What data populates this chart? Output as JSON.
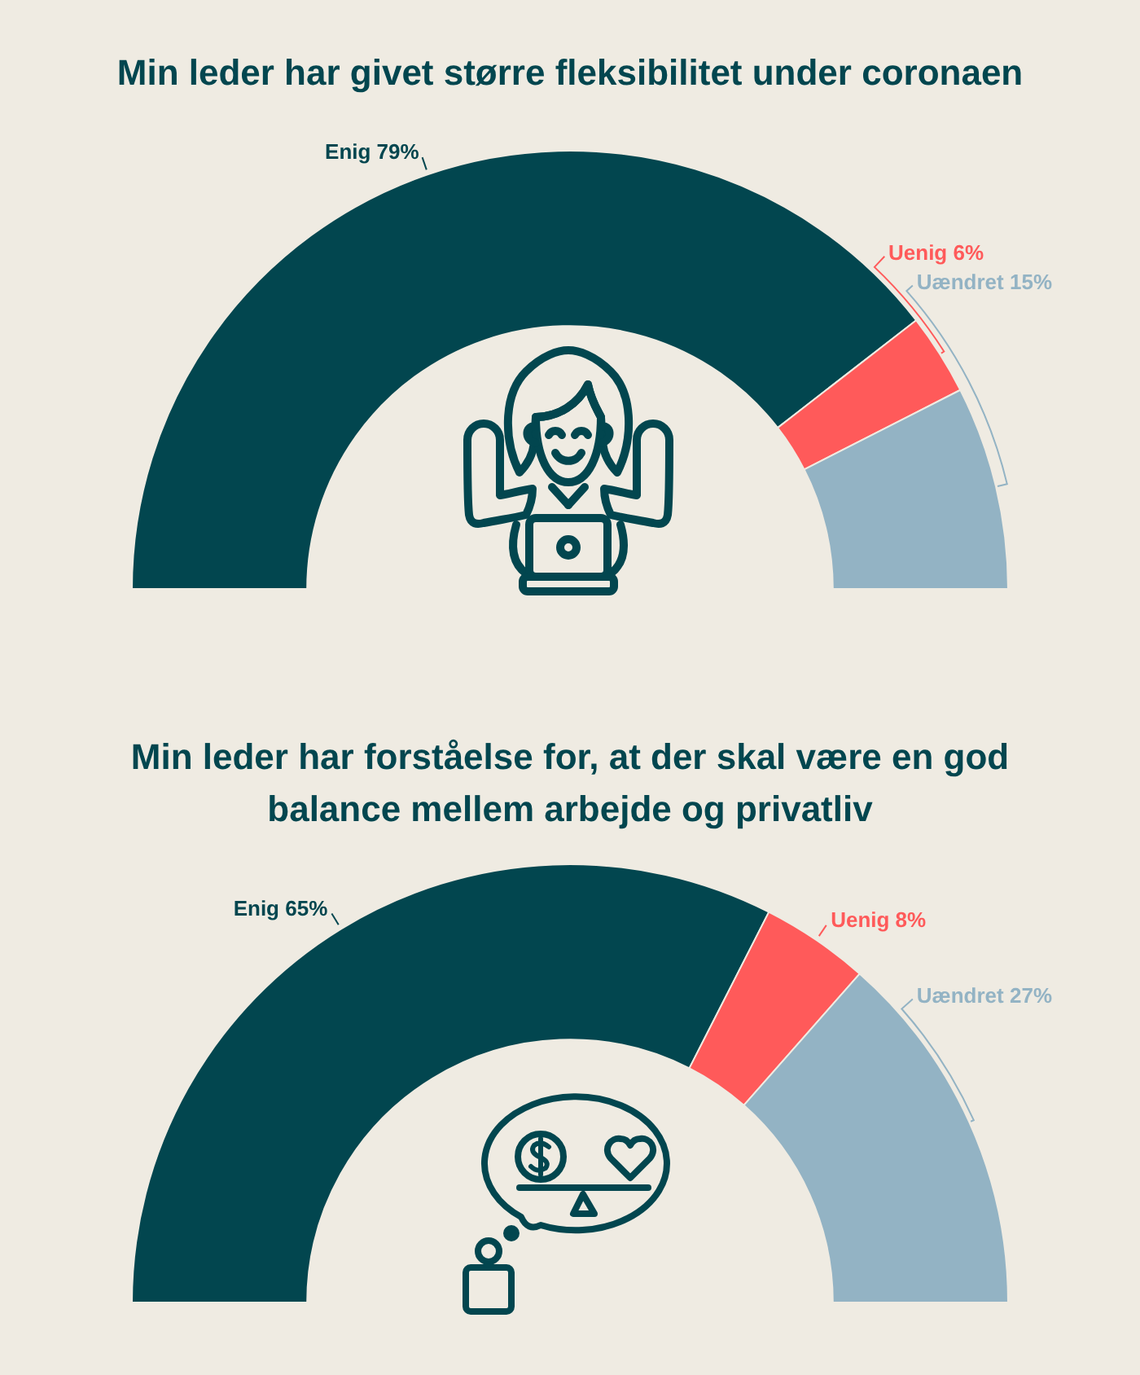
{
  "chart_data": [
    {
      "type": "donut",
      "title": "Min leder har givet større fleksibilitet under coronaen",
      "categories": [
        "Enig",
        "Uenig",
        "Uændret"
      ],
      "values": [
        79,
        6,
        15
      ],
      "colors": [
        "#02464f",
        "#ff5a5a",
        "#93b3c4"
      ],
      "value_labels": [
        "79%",
        "6%",
        "15%"
      ]
    },
    {
      "type": "donut",
      "title": "Min leder har forståelse for, at der skal være en god balance mellem arbejde og privatliv",
      "categories": [
        "Enig",
        "Uenig",
        "Uændret"
      ],
      "values": [
        65,
        8,
        27
      ],
      "colors": [
        "#02464f",
        "#ff5a5a",
        "#93b3c4"
      ],
      "value_labels": [
        "65%",
        "8%",
        "27%"
      ]
    }
  ]
}
